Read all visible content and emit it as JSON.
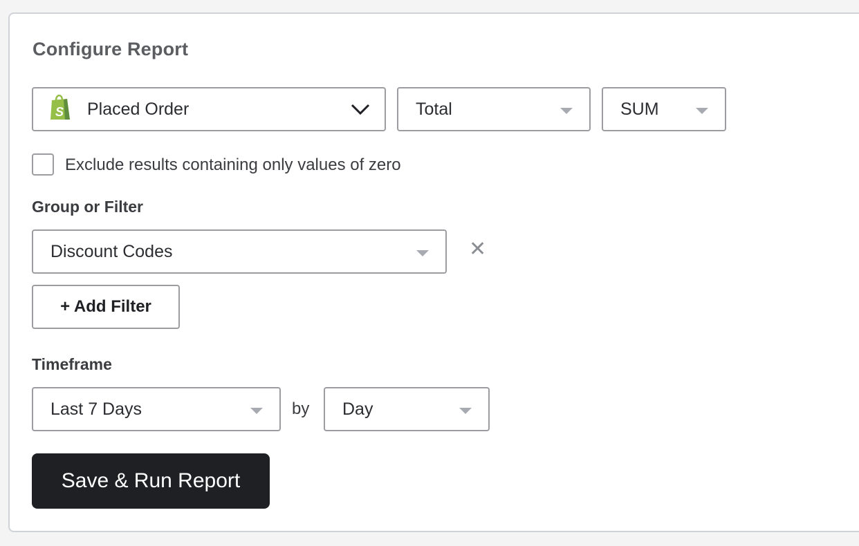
{
  "title": "Configure Report",
  "metric": {
    "event": "Placed Order",
    "event_icon": "shopify-bag-icon",
    "property": "Total",
    "aggregation": "SUM"
  },
  "exclude_zero": {
    "label": "Exclude results containing only values of zero",
    "checked": false
  },
  "group_filter": {
    "label": "Group or Filter",
    "value": "Discount Codes",
    "add_label": "+ Add Filter"
  },
  "timeframe": {
    "label": "Timeframe",
    "range": "Last 7 Days",
    "by_label": "by",
    "interval": "Day"
  },
  "save_label": "Save & Run Report",
  "colors": {
    "shopify_green": "#95bf47",
    "button_dark": "#1f2023"
  }
}
